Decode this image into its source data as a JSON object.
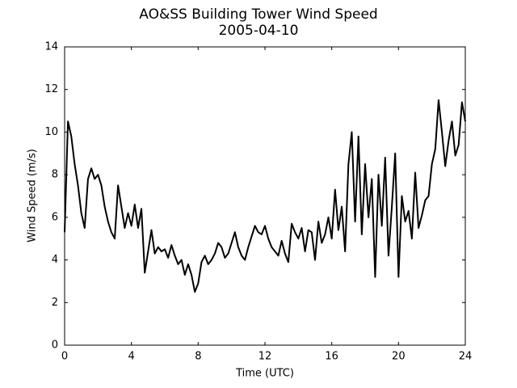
{
  "chart_data": {
    "type": "line",
    "title": "AO&SS Building Tower Wind Speed",
    "subtitle": "2005-04-10",
    "x_label": "Time (UTC)",
    "y_label": "Wind Speed (m/s)",
    "xlim": [
      0,
      24
    ],
    "xticks": [
      0,
      4,
      8,
      12,
      16,
      20,
      24
    ],
    "ylim": [
      0,
      14
    ],
    "yticks": [
      0,
      2,
      4,
      6,
      8,
      10,
      12,
      14
    ],
    "grid": false,
    "series": [
      {
        "color": "#000000",
        "x": [
          0,
          0.2,
          0.4,
          0.6,
          0.8,
          1,
          1.2,
          1.4,
          1.6,
          1.8,
          2,
          2.2,
          2.4,
          2.6,
          2.8,
          3,
          3.2,
          3.4,
          3.6,
          3.8,
          4,
          4.2,
          4.4,
          4.6,
          4.8,
          5,
          5.2,
          5.4,
          5.6,
          5.8,
          6,
          6.2,
          6.4,
          6.6,
          6.8,
          7,
          7.2,
          7.4,
          7.6,
          7.8,
          8,
          8.2,
          8.4,
          8.6,
          8.8,
          9,
          9.2,
          9.4,
          9.6,
          9.8,
          10,
          10.2,
          10.4,
          10.6,
          10.8,
          11,
          11.2,
          11.4,
          11.6,
          11.8,
          12,
          12.2,
          12.4,
          12.6,
          12.8,
          13,
          13.2,
          13.4,
          13.6,
          13.8,
          14,
          14.2,
          14.4,
          14.6,
          14.8,
          15,
          15.2,
          15.4,
          15.6,
          15.8,
          16,
          16.2,
          16.4,
          16.6,
          16.8,
          17,
          17.2,
          17.4,
          17.6,
          17.8,
          18,
          18.2,
          18.4,
          18.6,
          18.8,
          19,
          19.2,
          19.4,
          19.6,
          19.8,
          20,
          20.2,
          20.4,
          20.6,
          20.8,
          21,
          21.2,
          21.4,
          21.6,
          21.8,
          22,
          22.2,
          22.4,
          22.6,
          22.8,
          23,
          23.2,
          23.4,
          23.6,
          23.8,
          24
        ],
        "values": [
          5.3,
          10.5,
          9.8,
          8.5,
          7.5,
          6.2,
          5.5,
          7.8,
          8.3,
          7.8,
          8.0,
          7.5,
          6.5,
          5.8,
          5.3,
          5.0,
          7.5,
          6.5,
          5.5,
          6.2,
          5.6,
          6.6,
          5.5,
          6.4,
          3.4,
          4.4,
          5.4,
          4.3,
          4.6,
          4.4,
          4.5,
          4.1,
          4.7,
          4.2,
          3.8,
          4.0,
          3.3,
          3.8,
          3.3,
          2.5,
          2.9,
          3.9,
          4.2,
          3.8,
          4.0,
          4.3,
          4.8,
          4.6,
          4.1,
          4.3,
          4.8,
          5.3,
          4.6,
          4.2,
          4.0,
          4.6,
          5.1,
          5.6,
          5.3,
          5.2,
          5.6,
          5.0,
          4.6,
          4.4,
          4.2,
          4.9,
          4.3,
          3.9,
          5.7,
          5.3,
          5.0,
          5.5,
          4.4,
          5.4,
          5.3,
          4.0,
          5.8,
          4.8,
          5.2,
          6.0,
          5.0,
          7.3,
          5.4,
          6.5,
          4.4,
          8.5,
          10.0,
          5.8,
          9.8,
          5.2,
          8.5,
          6.0,
          7.8,
          3.2,
          8.0,
          5.6,
          8.8,
          4.2,
          6.5,
          9.0,
          3.2,
          7.0,
          5.8,
          6.3,
          5.0,
          8.1,
          5.5,
          6.1,
          6.8,
          7.0,
          8.5,
          9.2,
          11.5,
          10.0,
          8.4,
          9.6,
          10.5,
          8.9,
          9.4,
          11.4,
          10.5
        ]
      }
    ]
  }
}
